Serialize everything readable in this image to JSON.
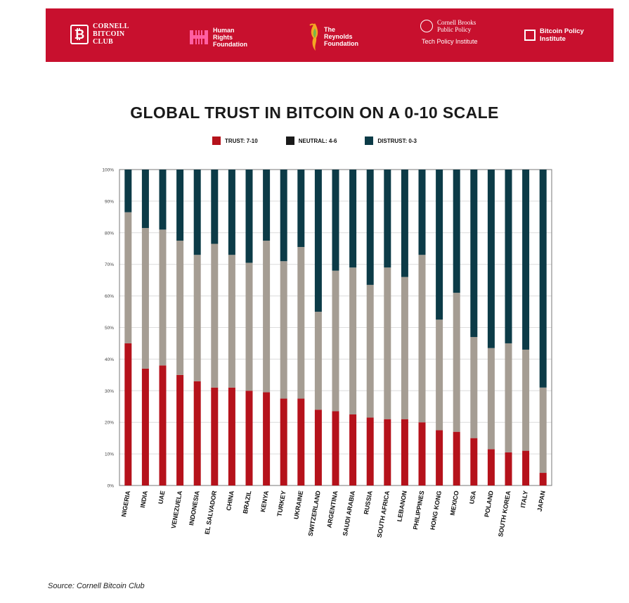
{
  "banner": {
    "bg_color": "#c8102e",
    "logos": {
      "cornell_bitcoin_club": {
        "icon": "bitcoin-icon",
        "lines": [
          "CORNELL",
          "BITCOIN",
          "CLUB"
        ]
      },
      "human_rights_foundation": {
        "lines": [
          "Human",
          "Rights",
          "Foundation"
        ]
      },
      "reynolds_foundation": {
        "lines": [
          "The",
          "Reynolds",
          "Foundation"
        ]
      },
      "cornell_brooks": {
        "lines": [
          "Cornell Brooks",
          "Public Policy"
        ],
        "sub": "Tech Policy Institute"
      },
      "bitcoin_policy_institute": {
        "lines": [
          "Bitcoin Policy",
          "Institute"
        ]
      }
    }
  },
  "chart_data": {
    "type": "bar",
    "stacked": true,
    "normalized": true,
    "title": "GLOBAL TRUST IN BITCOIN ON A 0-10 SCALE",
    "legend_position": "top",
    "grid": true,
    "ylim": [
      0,
      100
    ],
    "y_ticks": [
      "0%",
      "10%",
      "20%",
      "30%",
      "40%",
      "50%",
      "60%",
      "70%",
      "80%",
      "90%",
      "100%"
    ],
    "categories": [
      "NIGERIA",
      "INDIA",
      "UAE",
      "VENEZUELA",
      "INDONESIA",
      "EL SALVADOR",
      "CHINA",
      "BRAZIL",
      "KENYA",
      "TURKEY",
      "UKRAINE",
      "SWITZERLAND",
      "ARGENTINA",
      "SAUDI ARABIA",
      "RUSSIA",
      "SOUTH AFRICA",
      "LEBANON",
      "PHILIPPINES",
      "HONG KONG",
      "MEXICO",
      "USA",
      "POLAND",
      "SOUTH KOREA",
      "ITALY",
      "JAPAN"
    ],
    "series": [
      {
        "name": "TRUST: 7-10",
        "color": "#b5121b",
        "values": [
          45,
          37,
          38,
          35,
          33,
          31,
          31,
          30,
          29.5,
          27.5,
          27.5,
          24,
          23.5,
          22.5,
          21.5,
          21,
          21,
          20,
          17.5,
          17,
          15,
          11.5,
          10.5,
          11,
          4
        ]
      },
      {
        "name": "NEUTRAL: 4-6",
        "color": "#1a1a1a",
        "display_color": "#a59d93",
        "values": [
          41.5,
          44.5,
          43,
          42.5,
          40,
          45.5,
          42,
          40.5,
          48,
          43.5,
          48,
          31,
          44.5,
          46.5,
          42,
          48,
          45,
          53,
          35,
          44,
          32,
          32,
          34.5,
          32,
          27
        ]
      },
      {
        "name": "DISTRUST: 0-3",
        "color": "#0c3b47",
        "values": [
          13.5,
          18.5,
          19,
          22.5,
          27,
          23.5,
          27,
          29.5,
          22.5,
          29,
          24.5,
          45,
          32,
          31,
          36.5,
          31,
          34,
          27,
          47.5,
          39,
          53,
          56.5,
          55,
          57,
          69
        ]
      }
    ]
  },
  "source_text": "Source: Cornell Bitcoin Club"
}
